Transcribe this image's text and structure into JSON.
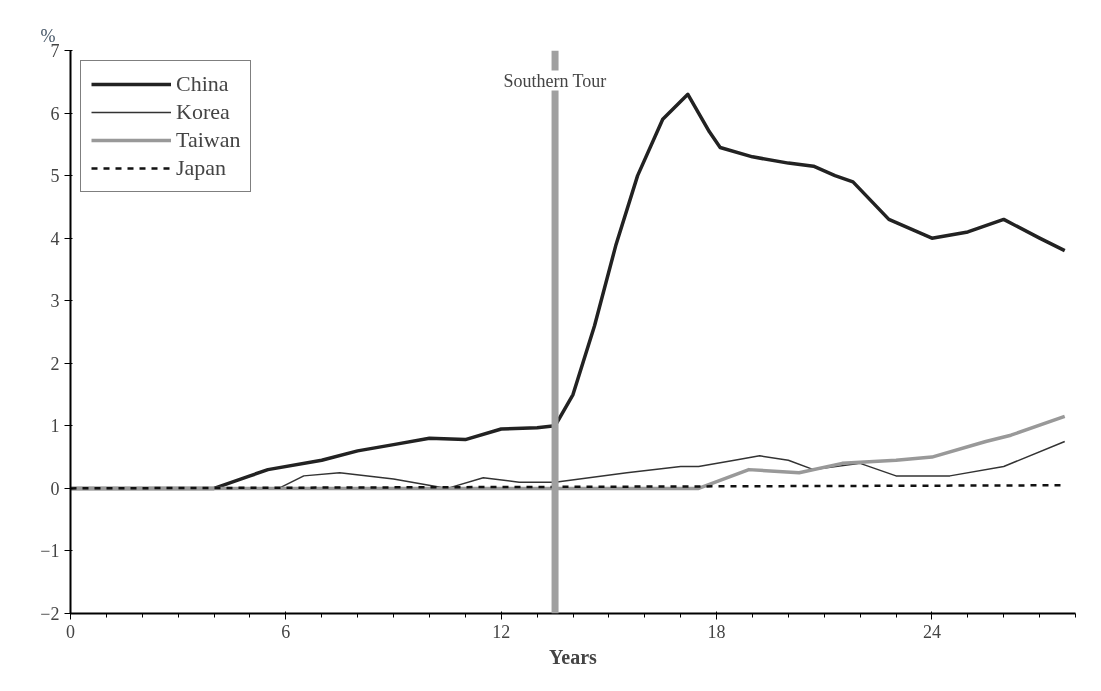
{
  "chart_data": {
    "type": "line",
    "xlabel": "Years",
    "ylabel": "%",
    "xlim": [
      0,
      28
    ],
    "ylim": [
      -2,
      7
    ],
    "xticks": [
      0,
      6,
      12,
      18,
      24
    ],
    "yticks": [
      -2,
      -1,
      0,
      1,
      2,
      3,
      4,
      5,
      6,
      7
    ],
    "grid": false,
    "legend": "top left",
    "marker": "none",
    "ref_lines": [
      {
        "axis": "x",
        "value": 13.5,
        "label": "Southern Tour",
        "color": "#a0a0a0"
      }
    ],
    "series": [
      {
        "name": "China",
        "color": "#222222",
        "line_style": "solid",
        "x": [
          0,
          4,
          5,
          5.5,
          7,
          8,
          9,
          10,
          11,
          12,
          13,
          13.5,
          14,
          14.6,
          15.2,
          15.8,
          16.5,
          17.2,
          17.8,
          18.1,
          19,
          20,
          20.7,
          21.3,
          21.8,
          22.8,
          24,
          25,
          26,
          27,
          27.7
        ],
        "values": [
          0,
          0,
          0.2,
          0.3,
          0.45,
          0.6,
          0.7,
          0.8,
          0.78,
          0.95,
          0.97,
          1.0,
          1.5,
          2.6,
          3.9,
          5.0,
          5.9,
          6.3,
          5.7,
          5.45,
          5.3,
          5.2,
          5.15,
          5.0,
          4.9,
          4.3,
          4.0,
          4.1,
          4.3,
          4.0,
          3.8
        ]
      },
      {
        "name": "Korea",
        "color": "#333333",
        "line_style": "solid",
        "x": [
          0,
          5.8,
          6.5,
          7.5,
          9,
          10.5,
          11.5,
          12.5,
          13.5,
          15.5,
          17,
          17.5,
          18.5,
          19.2,
          20,
          20.7,
          22,
          23,
          24.5,
          26,
          27.7
        ],
        "values": [
          0,
          0,
          0.2,
          0.25,
          0.15,
          0,
          0.17,
          0.1,
          0.1,
          0.25,
          0.35,
          0.35,
          0.45,
          0.52,
          0.45,
          0.3,
          0.4,
          0.2,
          0.2,
          0.35,
          0.75
        ]
      },
      {
        "name": "Taiwan",
        "color": "#999999",
        "line_style": "solid",
        "x": [
          0,
          17.5,
          18.9,
          20.3,
          21.5,
          23,
          24,
          25.5,
          26.2,
          27.7
        ],
        "values": [
          0,
          0,
          0.3,
          0.25,
          0.4,
          0.45,
          0.5,
          0.75,
          0.85,
          1.15
        ]
      },
      {
        "name": "Japan",
        "color": "#111111",
        "line_style": "dashed",
        "x": [
          0,
          27.7
        ],
        "values": [
          0,
          0.05
        ]
      }
    ]
  }
}
